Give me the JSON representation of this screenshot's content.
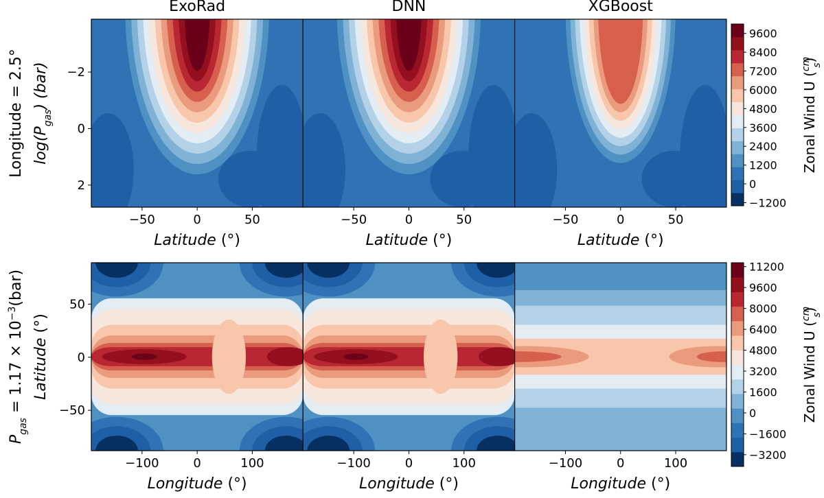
{
  "chart_data": [
    {
      "type": "contour",
      "titles": [
        "ExoRad",
        "DNN",
        "XGBoost"
      ],
      "row_label": [
        "Longitude = 2.5°"
      ],
      "ylabel": [
        "log(P",
        "gas",
        ") (bar)"
      ],
      "xlabel": [
        "Latitude",
        " (°)"
      ],
      "xlim": [
        -96,
        96
      ],
      "xticks": [
        {
          "value": -50,
          "label": "−50"
        },
        0,
        50
      ],
      "ylim": [
        -3.87,
        2.78
      ],
      "y_inverted": true,
      "yticks": [
        {
          "value": -2,
          "label": "−2"
        },
        0,
        2
      ],
      "colorbar": {
        "label": [
          "Zonal Wind U (",
          "cm",
          "s",
          ")"
        ],
        "lim": [
          -1400,
          10200
        ],
        "ticks": [
          {
            "value": -1200,
            "label": "−1200"
          },
          0,
          1200,
          2400,
          3600,
          4800,
          6000,
          7200,
          8400,
          9600
        ]
      }
    },
    {
      "type": "contour",
      "titles": [
        "ExoRad",
        "DNN",
        "XGBoost"
      ],
      "row_label": [
        "P",
        "gas",
        " = 1.17 × 10",
        "−3",
        "(bar)"
      ],
      "ylabel": [
        "Latitude",
        " (°)"
      ],
      "xlabel": [
        "Longitude",
        " (°)"
      ],
      "xlim": [
        -192,
        192
      ],
      "xticks": [
        {
          "value": -100,
          "label": "−100"
        },
        0,
        100
      ],
      "ylim": [
        -88,
        89
      ],
      "yticks": [
        {
          "value": -50,
          "label": "−50"
        },
        0,
        50
      ],
      "colorbar": {
        "label": [
          "Zonal Wind U (",
          "cm",
          "s",
          ")"
        ],
        "lim": [
          -4100,
          11500
        ],
        "ticks": [
          {
            "value": -3200,
            "label": "−3200"
          },
          {
            "value": -1600,
            "label": "−1600"
          },
          0,
          1600,
          3200,
          4800,
          6400,
          8000,
          9600,
          11200
        ]
      }
    }
  ]
}
